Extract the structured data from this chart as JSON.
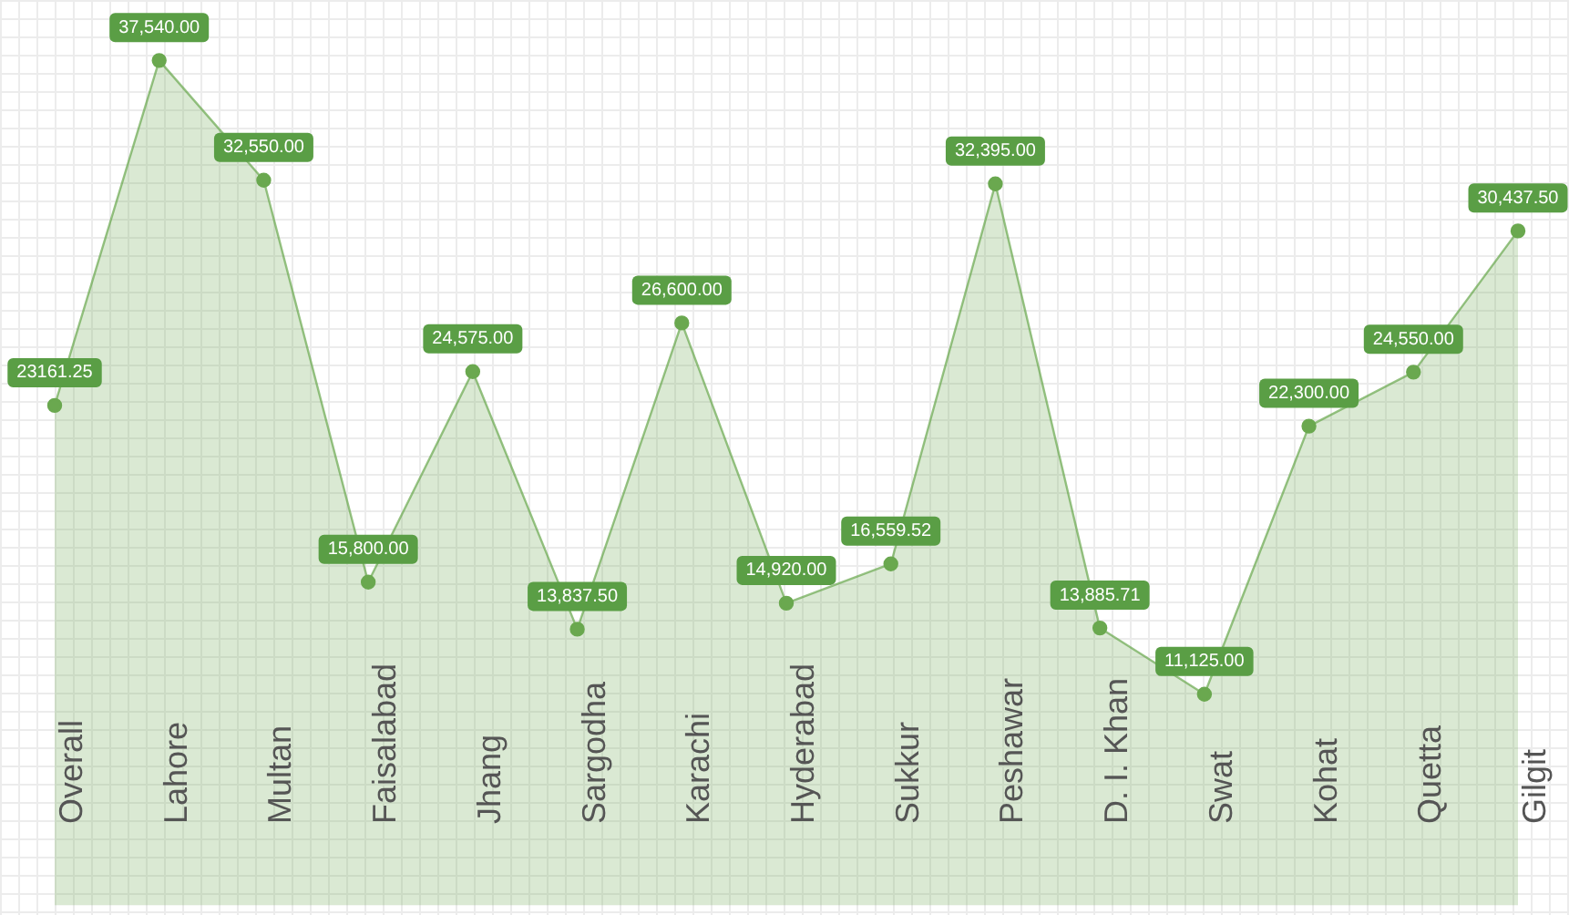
{
  "chart_data": {
    "type": "area",
    "categories": [
      "Overall",
      "Lahore",
      "Multan",
      "Faisalabad",
      "Jhang",
      "Sargodha",
      "Karachi",
      "Hyderabad",
      "Sukkur",
      "Peshawar",
      "D. I. Khan",
      "Swat",
      "Kohat",
      "Quetta",
      "Gilgit"
    ],
    "series": [
      {
        "color": "#6aa84f",
        "values": [
          23161.25,
          37540.0,
          32550.0,
          15800.0,
          24575.0,
          13837.5,
          26600.0,
          14920.0,
          16559.52,
          32395.0,
          13885.71,
          11125.0,
          22300.0,
          24550.0,
          30437.5
        ],
        "value_labels": [
          "23161.25",
          "37,540.00",
          "32,550.00",
          "15,800.00",
          "24,575.00",
          "13,837.50",
          "26,600.00",
          "14,920.00",
          "16,559.52",
          "32,395.00",
          "13,885.71",
          "11,125.00",
          "22,300.00",
          "24,550.00",
          "30,437.50"
        ]
      }
    ],
    "marker": "circle",
    "legend": false,
    "grid": false
  }
}
